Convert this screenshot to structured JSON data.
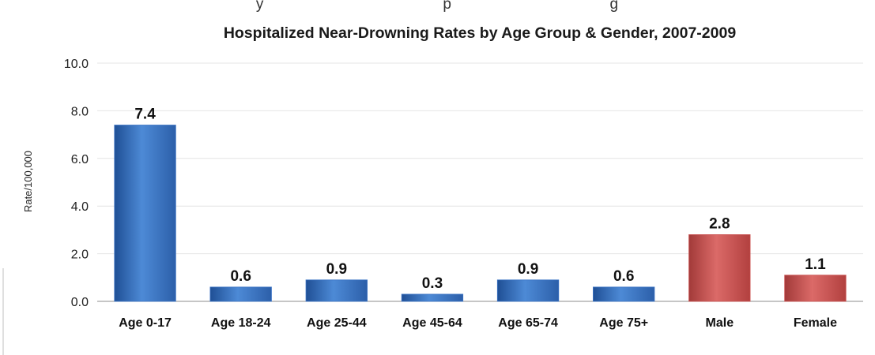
{
  "header": {
    "clipped_text": "y                                           p                                      g"
  },
  "chart_data": {
    "type": "bar",
    "title": "Hospitalized Near-Drowning Rates by Age Group & Gender, 2007-2009",
    "xlabel": "",
    "ylabel": "Rate/100,000",
    "ylim": [
      0,
      10
    ],
    "yticks": [
      "0.0",
      "2.0",
      "4.0",
      "6.0",
      "8.0",
      "10.0"
    ],
    "grid": true,
    "categories": [
      "Age 0-17",
      "Age 18-24",
      "Age 25-44",
      "Age 45-64",
      "Age 65-74",
      "Age 75+",
      "Male",
      "Female"
    ],
    "values": [
      7.4,
      0.6,
      0.9,
      0.3,
      0.9,
      0.6,
      2.8,
      1.1
    ],
    "data_labels": [
      "7.4",
      "0.6",
      "0.9",
      "0.3",
      "0.9",
      "0.6",
      "2.8",
      "1.1"
    ],
    "colors": {
      "age_group": "#3b73c4",
      "gender": "#c9504f"
    },
    "bar_color_keys": [
      "age_group",
      "age_group",
      "age_group",
      "age_group",
      "age_group",
      "age_group",
      "gender",
      "gender"
    ]
  }
}
